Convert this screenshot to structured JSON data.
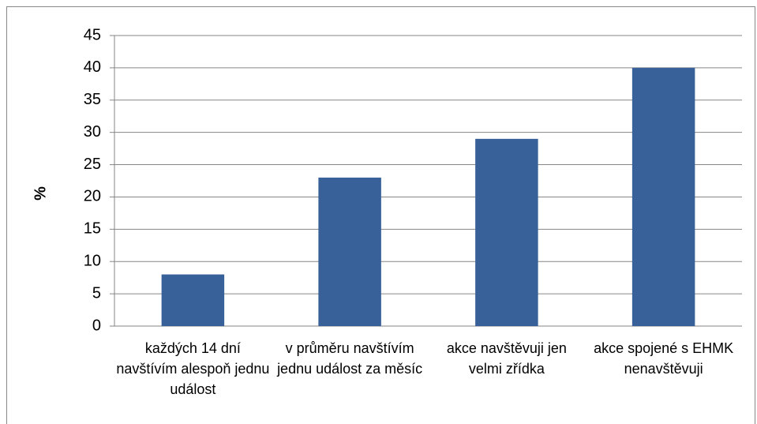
{
  "chart_data": {
    "type": "bar",
    "ylabel": "%",
    "categories": [
      "každých 14 dní navštívím alespoň jednu událost",
      "v průměru navštívím jednu událost za měsíc",
      "akce navštěvuji jen velmi zřídka",
      "akce spojené s EHMK nenavštěvuji"
    ],
    "values": [
      8,
      23,
      29,
      40
    ],
    "color": "#38619a",
    "ylim": [
      0,
      45
    ],
    "yticks": [
      0,
      5,
      10,
      15,
      20,
      25,
      30,
      35,
      40,
      45
    ],
    "grid": true
  }
}
